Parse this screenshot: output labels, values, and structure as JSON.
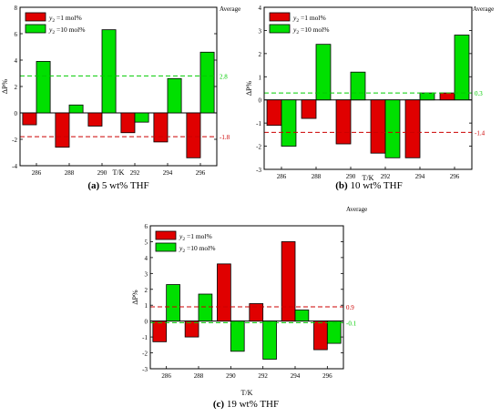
{
  "figure": {
    "average_label": "Average"
  },
  "chart_data": [
    {
      "type": "bar",
      "caption_letter": "(a)",
      "caption_text": " 5 wt% THF",
      "xlabel": "T/K",
      "ylabel": "ΔP%",
      "categories": [
        "286",
        "288",
        "290",
        "292",
        "294",
        "296"
      ],
      "ylim": [
        -4,
        8
      ],
      "yticks": [
        -4,
        -2,
        0,
        2,
        4,
        6,
        8
      ],
      "legend_position": "top-left",
      "series": [
        {
          "name_prefix": "y",
          "name_sub": "2",
          "name_suffix": " =1 mol%",
          "color": "#e00000",
          "values": [
            -0.9,
            -2.6,
            -1.0,
            -1.5,
            -2.2,
            -3.4
          ]
        },
        {
          "name_prefix": "y",
          "name_sub": "2",
          "name_suffix": " =10 mol%",
          "color": "#00e000",
          "values": [
            3.9,
            0.6,
            6.3,
            -0.7,
            2.6,
            4.6
          ]
        }
      ],
      "averages": [
        {
          "label": "2.8",
          "value": 2.8,
          "color": "#00cc00"
        },
        {
          "label": "-1.8",
          "value": -1.8,
          "color": "#cc0000"
        }
      ]
    },
    {
      "type": "bar",
      "caption_letter": "(b)",
      "caption_text": " 10 wt% THF",
      "xlabel": "T/K",
      "ylabel": "ΔP%",
      "categories": [
        "286",
        "288",
        "290",
        "292",
        "294",
        "296"
      ],
      "ylim": [
        -3,
        4
      ],
      "yticks": [
        -3,
        -2,
        -1,
        0,
        1,
        2,
        3,
        4
      ],
      "legend_position": "top-left",
      "series": [
        {
          "name_prefix": "y",
          "name_sub": "2",
          "name_suffix": " =1 mol%",
          "color": "#e00000",
          "values": [
            -1.1,
            -0.8,
            -1.9,
            -2.3,
            -2.5,
            0.3
          ]
        },
        {
          "name_prefix": "y",
          "name_sub": "2",
          "name_suffix": " =10 mol%",
          "color": "#00e000",
          "values": [
            -2.0,
            2.4,
            1.2,
            -2.5,
            0.3,
            2.8
          ]
        }
      ],
      "averages": [
        {
          "label": "0.3",
          "value": 0.3,
          "color": "#00cc00"
        },
        {
          "label": "-1.4",
          "value": -1.4,
          "color": "#cc0000"
        }
      ]
    },
    {
      "type": "bar",
      "caption_letter": "(c)",
      "caption_text": " 19 wt% THF",
      "xlabel": "T/K",
      "ylabel": "ΔP%",
      "categories": [
        "286",
        "288",
        "290",
        "292",
        "294",
        "296"
      ],
      "ylim": [
        -3,
        6
      ],
      "yticks": [
        -3,
        -2,
        -1,
        0,
        1,
        2,
        3,
        4,
        5,
        6
      ],
      "legend_position": "top-left",
      "series": [
        {
          "name_prefix": "y",
          "name_sub": "2",
          "name_suffix": " =1 mol%",
          "color": "#e00000",
          "values": [
            -1.3,
            -1.0,
            3.6,
            1.1,
            5.0,
            -1.8
          ]
        },
        {
          "name_prefix": "y",
          "name_sub": "2",
          "name_suffix": " =10 mol%",
          "color": "#00e000",
          "values": [
            2.3,
            1.7,
            -1.9,
            -2.4,
            0.7,
            -1.4
          ]
        }
      ],
      "averages": [
        {
          "label": "0.9",
          "value": 0.9,
          "color": "#cc0000"
        },
        {
          "label": "-0.1",
          "value": -0.1,
          "color": "#00cc00"
        }
      ]
    }
  ]
}
